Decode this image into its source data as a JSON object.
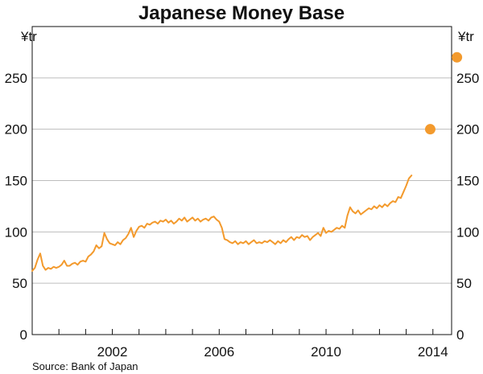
{
  "chart_data": {
    "type": "line",
    "title": "Japanese Money Base",
    "ylabel_left": "¥tr",
    "ylabel_right": "¥tr",
    "source": "Source: Bank of Japan",
    "xlim": [
      1999.0,
      2014.7
    ],
    "ylim": [
      0,
      300
    ],
    "yticks": [
      0,
      50,
      100,
      150,
      200,
      250
    ],
    "xticks": [
      {
        "label": "2002",
        "value": 2002
      },
      {
        "label": "2006",
        "value": 2006
      },
      {
        "label": "2010",
        "value": 2010
      },
      {
        "label": "2014",
        "value": 2014
      }
    ],
    "grid": true,
    "colors": {
      "line": "#F39A2D",
      "projection": "#F39A2D",
      "grid": "#BDBDBD",
      "axis": "#111111"
    },
    "series": [
      {
        "values": [
          [
            1999.0,
            62
          ],
          [
            1999.1,
            65
          ],
          [
            1999.2,
            73
          ],
          [
            1999.3,
            79
          ],
          [
            1999.4,
            67
          ],
          [
            1999.5,
            63
          ],
          [
            1999.6,
            65
          ],
          [
            1999.7,
            64
          ],
          [
            1999.8,
            66
          ],
          [
            1999.9,
            65
          ],
          [
            2000.0,
            66
          ],
          [
            2000.1,
            68
          ],
          [
            2000.2,
            72
          ],
          [
            2000.3,
            67
          ],
          [
            2000.4,
            67
          ],
          [
            2000.5,
            69
          ],
          [
            2000.6,
            70
          ],
          [
            2000.7,
            68
          ],
          [
            2000.8,
            71
          ],
          [
            2000.9,
            72
          ],
          [
            2001.0,
            71
          ],
          [
            2001.1,
            76
          ],
          [
            2001.2,
            78
          ],
          [
            2001.3,
            81
          ],
          [
            2001.4,
            87
          ],
          [
            2001.5,
            84
          ],
          [
            2001.6,
            86
          ],
          [
            2001.7,
            99
          ],
          [
            2001.8,
            93
          ],
          [
            2001.9,
            89
          ],
          [
            2002.0,
            88
          ],
          [
            2002.1,
            87
          ],
          [
            2002.2,
            90
          ],
          [
            2002.3,
            88
          ],
          [
            2002.4,
            92
          ],
          [
            2002.5,
            94
          ],
          [
            2002.6,
            98
          ],
          [
            2002.7,
            104
          ],
          [
            2002.8,
            95
          ],
          [
            2002.9,
            101
          ],
          [
            2003.0,
            105
          ],
          [
            2003.1,
            106
          ],
          [
            2003.2,
            104
          ],
          [
            2003.3,
            108
          ],
          [
            2003.4,
            107
          ],
          [
            2003.5,
            109
          ],
          [
            2003.6,
            110
          ],
          [
            2003.7,
            108
          ],
          [
            2003.8,
            111
          ],
          [
            2003.9,
            110
          ],
          [
            2004.0,
            112
          ],
          [
            2004.1,
            109
          ],
          [
            2004.2,
            111
          ],
          [
            2004.3,
            108
          ],
          [
            2004.4,
            110
          ],
          [
            2004.5,
            113
          ],
          [
            2004.6,
            111
          ],
          [
            2004.7,
            114
          ],
          [
            2004.8,
            110
          ],
          [
            2004.9,
            112
          ],
          [
            2005.0,
            114
          ],
          [
            2005.1,
            111
          ],
          [
            2005.2,
            113
          ],
          [
            2005.3,
            110
          ],
          [
            2005.4,
            112
          ],
          [
            2005.5,
            113
          ],
          [
            2005.6,
            111
          ],
          [
            2005.7,
            114
          ],
          [
            2005.8,
            115
          ],
          [
            2005.9,
            112
          ],
          [
            2006.0,
            110
          ],
          [
            2006.1,
            104
          ],
          [
            2006.2,
            93
          ],
          [
            2006.3,
            92
          ],
          [
            2006.4,
            90
          ],
          [
            2006.5,
            89
          ],
          [
            2006.6,
            91
          ],
          [
            2006.7,
            88
          ],
          [
            2006.8,
            90
          ],
          [
            2006.9,
            89
          ],
          [
            2007.0,
            91
          ],
          [
            2007.1,
            88
          ],
          [
            2007.2,
            90
          ],
          [
            2007.3,
            92
          ],
          [
            2007.4,
            89
          ],
          [
            2007.5,
            90
          ],
          [
            2007.6,
            89
          ],
          [
            2007.7,
            91
          ],
          [
            2007.8,
            90
          ],
          [
            2007.9,
            92
          ],
          [
            2008.0,
            90
          ],
          [
            2008.1,
            88
          ],
          [
            2008.2,
            91
          ],
          [
            2008.3,
            89
          ],
          [
            2008.4,
            92
          ],
          [
            2008.5,
            90
          ],
          [
            2008.6,
            93
          ],
          [
            2008.7,
            95
          ],
          [
            2008.8,
            92
          ],
          [
            2008.9,
            95
          ],
          [
            2009.0,
            94
          ],
          [
            2009.1,
            97
          ],
          [
            2009.2,
            95
          ],
          [
            2009.3,
            96
          ],
          [
            2009.4,
            92
          ],
          [
            2009.5,
            95
          ],
          [
            2009.6,
            97
          ],
          [
            2009.7,
            99
          ],
          [
            2009.8,
            96
          ],
          [
            2009.9,
            104
          ],
          [
            2010.0,
            99
          ],
          [
            2010.1,
            101
          ],
          [
            2010.2,
            100
          ],
          [
            2010.3,
            102
          ],
          [
            2010.4,
            104
          ],
          [
            2010.5,
            103
          ],
          [
            2010.6,
            106
          ],
          [
            2010.7,
            104
          ],
          [
            2010.8,
            116
          ],
          [
            2010.9,
            124
          ],
          [
            2011.0,
            120
          ],
          [
            2011.1,
            118
          ],
          [
            2011.2,
            121
          ],
          [
            2011.3,
            117
          ],
          [
            2011.4,
            119
          ],
          [
            2011.5,
            121
          ],
          [
            2011.6,
            123
          ],
          [
            2011.7,
            122
          ],
          [
            2011.8,
            125
          ],
          [
            2011.9,
            123
          ],
          [
            2012.0,
            126
          ],
          [
            2012.1,
            124
          ],
          [
            2012.2,
            127
          ],
          [
            2012.3,
            125
          ],
          [
            2012.4,
            128
          ],
          [
            2012.5,
            130
          ],
          [
            2012.6,
            129
          ],
          [
            2012.7,
            134
          ],
          [
            2012.8,
            133
          ],
          [
            2012.9,
            139
          ],
          [
            2013.0,
            145
          ],
          [
            2013.1,
            152
          ],
          [
            2013.2,
            155
          ]
        ]
      }
    ],
    "projections": [
      {
        "x": 2013.9,
        "y": 200
      },
      {
        "x": 2014.9,
        "y": 270
      }
    ]
  }
}
